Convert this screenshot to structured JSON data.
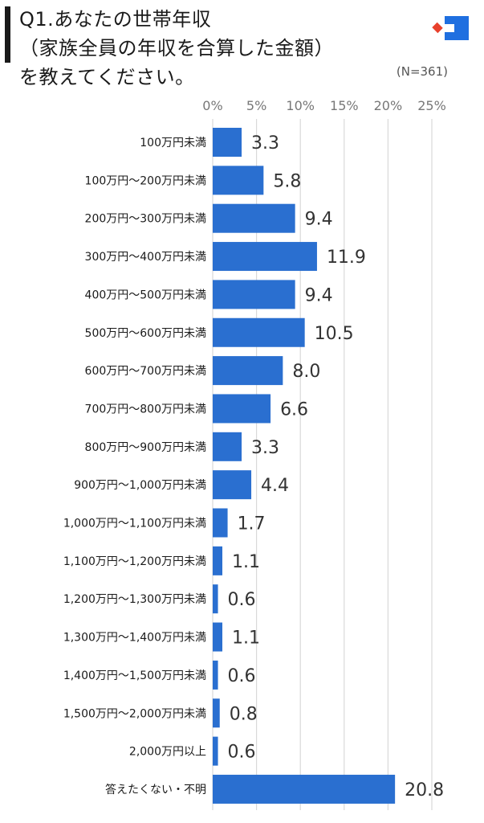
{
  "title_lines": [
    "Q1.あなたの世帯年収",
    "（家族全員の年収を合算した金額）",
    "を教えてください。"
  ],
  "sample_size": "(N=361)",
  "brand_colors": {
    "bar": "#2a6fd0",
    "logo_blue": "#1f6fe0",
    "logo_red": "#e8412c"
  },
  "chart_data": {
    "type": "bar",
    "orientation": "horizontal",
    "categories": [
      "100万円未満",
      "100万円〜200万円未満",
      "200万円〜300万円未満",
      "300万円〜400万円未満",
      "400万円〜500万円未満",
      "500万円〜600万円未満",
      "600万円〜700万円未満",
      "700万円〜800万円未満",
      "800万円〜900万円未満",
      "900万円〜1,000万円未満",
      "1,000万円〜1,100万円未満",
      "1,100万円〜1,200万円未満",
      "1,200万円〜1,300万円未満",
      "1,300万円〜1,400万円未満",
      "1,400万円〜1,500万円未満",
      "1,500万円〜2,000万円未満",
      "2,000万円以上",
      "答えたくない・不明"
    ],
    "values": [
      3.3,
      5.8,
      9.4,
      11.9,
      9.4,
      10.5,
      8.0,
      6.6,
      3.3,
      4.4,
      1.7,
      1.1,
      0.6,
      1.1,
      0.6,
      0.8,
      0.6,
      20.8
    ],
    "value_labels": [
      "3.3",
      "5.8",
      "9.4",
      "11.9",
      "9.4",
      "10.5",
      "8.0",
      "6.6",
      "3.3",
      "4.4",
      "1.7",
      "1.1",
      "0.6",
      "1.1",
      "0.6",
      "0.8",
      "0.6",
      "20.8"
    ],
    "x_ticks": [
      0,
      5,
      10,
      15,
      20,
      25
    ],
    "x_tick_labels": [
      "0%",
      "5%",
      "10%",
      "15%",
      "20%",
      "25%"
    ],
    "xlim": [
      0,
      25
    ],
    "axis_position": "top",
    "grid": true,
    "legend": "none"
  }
}
